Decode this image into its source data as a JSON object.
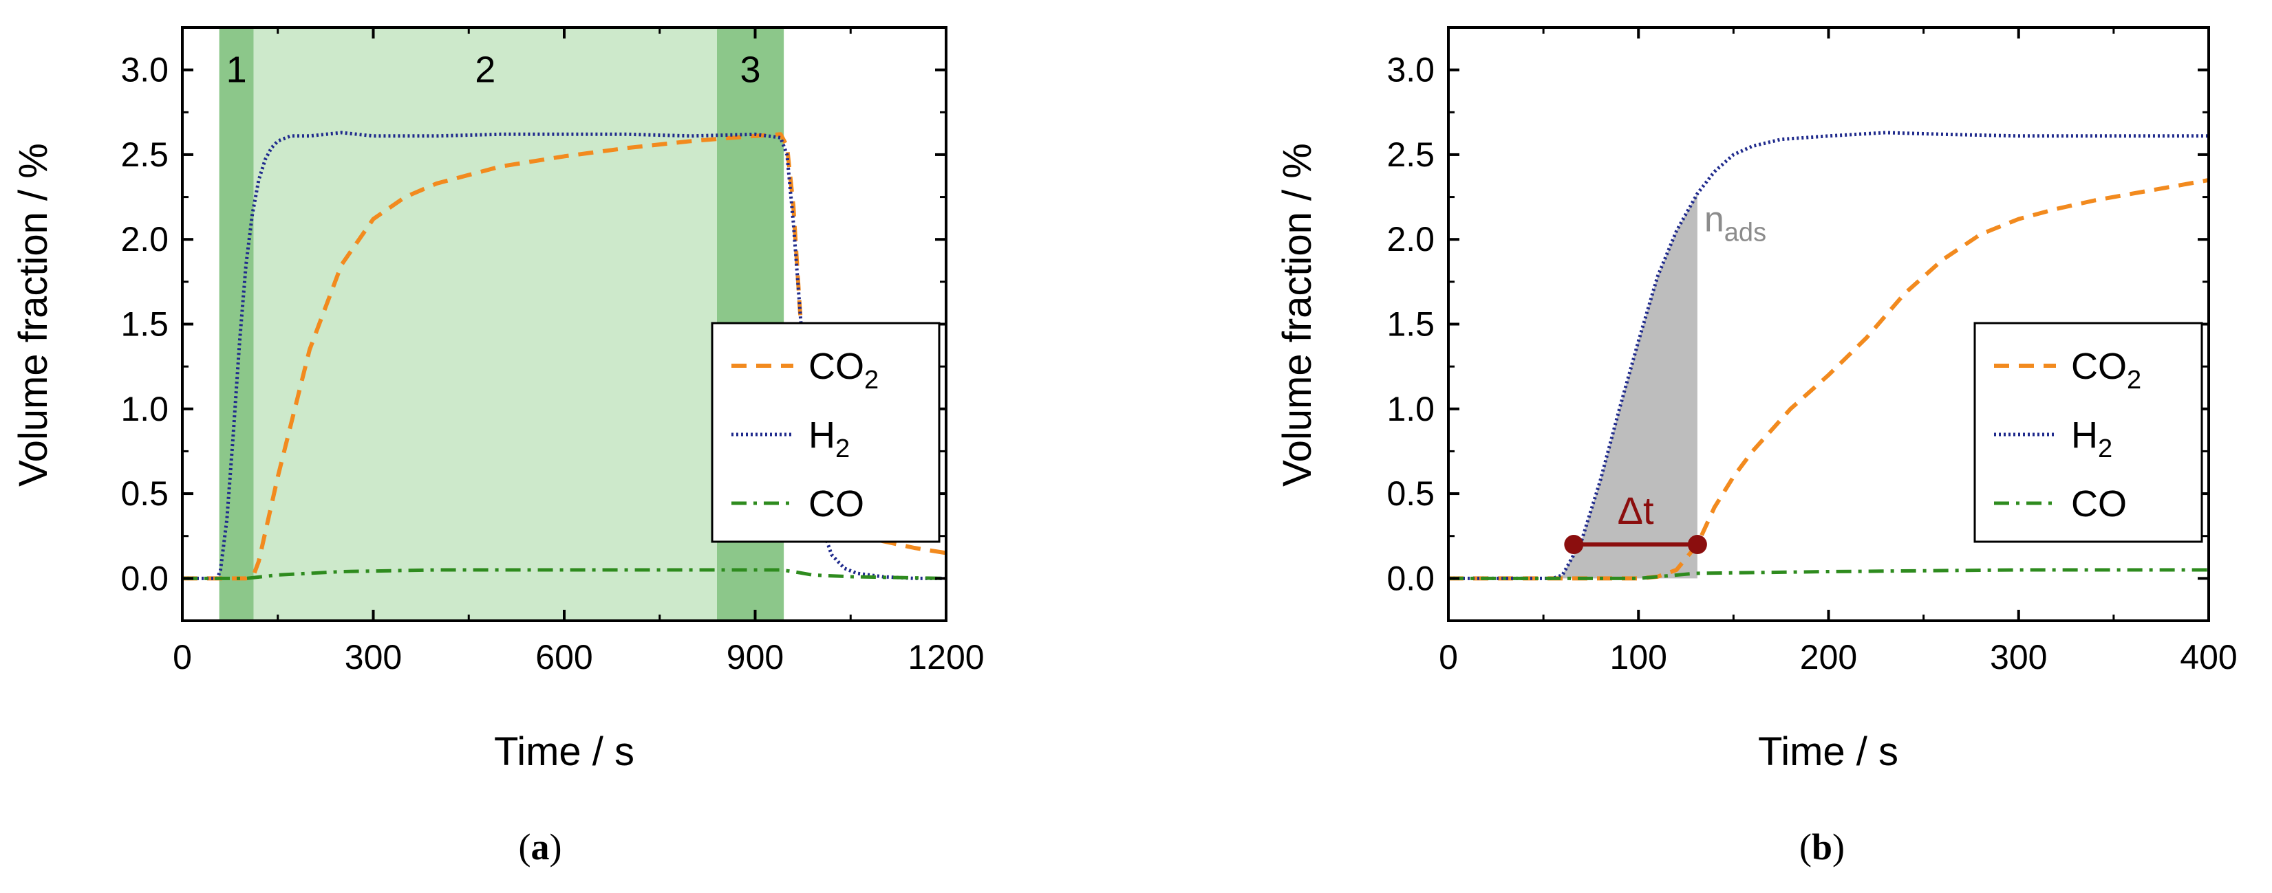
{
  "colors": {
    "co2": "#f28a1e",
    "h2": "#1f2a8c",
    "co": "#2e8b1e",
    "region_dark": "#8cc78a",
    "region_light": "#cde9cb",
    "area": "#bdbdbd",
    "nads": "#8c8c8c",
    "dt": "#8b0e0e",
    "axis": "#000000"
  },
  "captions": {
    "a": "a",
    "b": "b"
  },
  "chart_data": [
    {
      "id": "a",
      "type": "line",
      "xlabel": "Time / s",
      "ylabel": "Volume fraction / %",
      "xlim": [
        0,
        1200
      ],
      "ylim": [
        -0.25,
        3.25
      ],
      "xticks": [
        0,
        300,
        600,
        900,
        1200
      ],
      "yticks": [
        0.0,
        0.5,
        1.0,
        1.5,
        2.0,
        2.5,
        3.0
      ],
      "xtick_labels": [
        "0",
        "300",
        "600",
        "900",
        "1200"
      ],
      "ytick_labels": [
        "0.0",
        "0.5",
        "1.0",
        "1.5",
        "2.0",
        "2.5",
        "3.0"
      ],
      "regions": [
        {
          "label": "1",
          "x0": 58,
          "x1": 112,
          "shade": "dark"
        },
        {
          "label": "2",
          "x0": 112,
          "x1": 840,
          "shade": "light"
        },
        {
          "label": "3",
          "x0": 840,
          "x1": 945,
          "shade": "dark"
        }
      ],
      "legend": {
        "position": "center-right",
        "entries": [
          {
            "text": "CO",
            "sub": "2",
            "series": "CO2"
          },
          {
            "text": "H",
            "sub": "2",
            "series": "H2"
          },
          {
            "text": "CO",
            "sub": "",
            "series": "CO"
          }
        ]
      },
      "series": [
        {
          "name": "CO2",
          "style": "dashed",
          "x": [
            0,
            100,
            112,
            120,
            150,
            200,
            250,
            300,
            350,
            400,
            500,
            600,
            700,
            800,
            900,
            940,
            950,
            960,
            970,
            980,
            990,
            1000,
            1020,
            1050,
            1100,
            1150,
            1200
          ],
          "y": [
            0,
            0,
            0.02,
            0.1,
            0.6,
            1.35,
            1.85,
            2.12,
            2.25,
            2.33,
            2.43,
            2.49,
            2.54,
            2.58,
            2.61,
            2.62,
            2.55,
            2.2,
            1.6,
            1.1,
            0.8,
            0.6,
            0.42,
            0.3,
            0.22,
            0.18,
            0.15
          ]
        },
        {
          "name": "H2",
          "style": "dotted",
          "x": [
            0,
            55,
            60,
            70,
            80,
            90,
            100,
            110,
            120,
            130,
            140,
            150,
            170,
            200,
            250,
            300,
            400,
            500,
            600,
            700,
            800,
            900,
            940,
            950,
            960,
            970,
            980,
            990,
            1000,
            1010,
            1020,
            1040,
            1060,
            1080,
            1100,
            1150,
            1200
          ],
          "y": [
            0,
            0,
            0.05,
            0.35,
            0.85,
            1.4,
            1.85,
            2.15,
            2.35,
            2.47,
            2.54,
            2.58,
            2.61,
            2.61,
            2.63,
            2.61,
            2.61,
            2.62,
            2.62,
            2.62,
            2.61,
            2.62,
            2.6,
            2.5,
            2.1,
            1.6,
            1.1,
            0.7,
            0.42,
            0.25,
            0.14,
            0.06,
            0.03,
            0.02,
            0.01,
            0.0,
            0.0
          ]
        },
        {
          "name": "CO",
          "style": "dash-dot",
          "x": [
            0,
            100,
            150,
            250,
            400,
            600,
            800,
            940,
            960,
            990,
            1050,
            1200
          ],
          "y": [
            0,
            0,
            0.02,
            0.04,
            0.05,
            0.05,
            0.05,
            0.05,
            0.04,
            0.02,
            0.01,
            0.0
          ]
        }
      ]
    },
    {
      "id": "b",
      "type": "line",
      "xlabel": "Time / s",
      "ylabel": "Volume fraction / %",
      "xlim": [
        0,
        400
      ],
      "ylim": [
        -0.25,
        3.25
      ],
      "xticks": [
        0,
        100,
        200,
        300,
        400
      ],
      "yticks": [
        0.0,
        0.5,
        1.0,
        1.5,
        2.0,
        2.5,
        3.0
      ],
      "xtick_labels": [
        "0",
        "100",
        "200",
        "300",
        "400"
      ],
      "ytick_labels": [
        "0.0",
        "0.5",
        "1.0",
        "1.5",
        "2.0",
        "2.5",
        "3.0"
      ],
      "legend": {
        "position": "center-right",
        "entries": [
          {
            "text": "CO",
            "sub": "2",
            "series": "CO2"
          },
          {
            "text": "H",
            "sub": "2",
            "series": "H2"
          },
          {
            "text": "CO",
            "sub": "",
            "series": "CO"
          }
        ]
      },
      "annotations": {
        "nads": {
          "main": "n",
          "sub": "ads",
          "x": 131,
          "y": 2.12
        },
        "area": {
          "x0": 55,
          "x1": 131
        },
        "dt": {
          "label": "Δt",
          "x0": 66,
          "x1": 131,
          "y": 0.2
        }
      },
      "series": [
        {
          "name": "CO2",
          "style": "dashed",
          "x": [
            0,
            100,
            110,
            120,
            131,
            140,
            150,
            160,
            180,
            200,
            220,
            240,
            260,
            280,
            300,
            320,
            340,
            360,
            380,
            400
          ],
          "y": [
            0,
            0,
            0.01,
            0.05,
            0.2,
            0.42,
            0.6,
            0.75,
            1.0,
            1.2,
            1.42,
            1.68,
            1.88,
            2.03,
            2.12,
            2.18,
            2.23,
            2.27,
            2.31,
            2.35
          ]
        },
        {
          "name": "H2",
          "style": "dotted",
          "x": [
            0,
            55,
            60,
            70,
            80,
            90,
            100,
            110,
            120,
            131,
            140,
            150,
            160,
            175,
            200,
            230,
            260,
            300,
            350,
            400
          ],
          "y": [
            0,
            0,
            0.02,
            0.22,
            0.58,
            1.0,
            1.4,
            1.78,
            2.05,
            2.27,
            2.4,
            2.5,
            2.55,
            2.59,
            2.61,
            2.63,
            2.62,
            2.61,
            2.61,
            2.61
          ]
        },
        {
          "name": "CO",
          "style": "dash-dot",
          "x": [
            0,
            100,
            130,
            200,
            300,
            400
          ],
          "y": [
            0,
            0,
            0.03,
            0.04,
            0.05,
            0.05
          ]
        }
      ]
    }
  ]
}
